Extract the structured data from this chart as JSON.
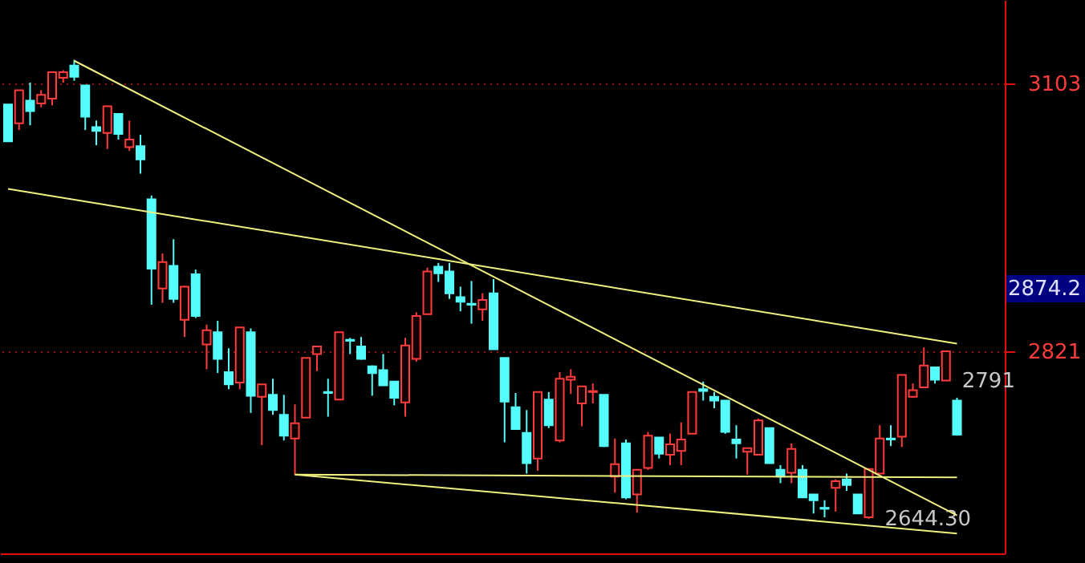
{
  "chart_data": {
    "type": "candlestick",
    "categories": [
      null,
      null,
      null,
      null,
      null,
      null,
      null,
      null,
      null,
      null,
      null,
      null,
      null,
      null,
      null,
      null,
      null,
      null,
      null,
      null,
      null,
      null,
      null,
      null,
      null,
      null,
      null,
      null,
      null,
      null,
      null,
      null,
      null,
      null,
      null,
      null,
      null,
      null,
      null,
      null,
      null,
      null,
      null,
      null,
      null,
      null,
      null,
      null,
      null,
      null,
      null,
      null,
      null,
      null,
      null,
      null,
      null,
      null,
      null,
      null,
      null,
      null,
      null,
      null,
      null,
      null,
      null,
      null,
      null,
      null,
      null,
      null,
      null,
      null,
      null,
      null,
      null,
      null,
      null,
      null,
      null,
      null,
      null,
      null,
      null,
      null,
      null
    ],
    "value_labels": [
      null,
      null,
      null,
      null,
      null,
      null,
      null,
      null,
      null,
      null,
      null,
      null,
      null,
      null,
      null,
      null,
      null,
      null,
      null,
      null,
      null,
      null,
      null,
      null,
      null,
      null,
      null,
      null,
      null,
      null,
      null,
      null,
      null,
      null,
      null,
      null,
      null,
      null,
      null,
      null,
      null,
      null,
      null,
      null,
      null,
      null,
      null,
      null,
      null,
      null,
      null,
      null,
      null,
      null,
      null,
      null,
      null,
      null,
      null,
      null,
      null,
      null,
      null,
      null,
      null,
      null,
      null,
      null,
      null,
      null,
      null,
      null,
      null,
      null,
      null,
      null,
      null,
      null,
      "2644.30",
      null,
      null,
      null,
      null,
      null,
      null,
      "2791",
      null
    ],
    "ohlc": [
      [
        3081,
        3081,
        3042,
        3042
      ],
      [
        3061,
        3096,
        3054,
        3096
      ],
      [
        3085,
        3104,
        3059,
        3074
      ],
      [
        3082,
        3096,
        3078,
        3091
      ],
      [
        3087,
        3115,
        3080,
        3115
      ],
      [
        3109,
        3117,
        3104,
        3115
      ],
      [
        3122,
        3128,
        3106,
        3110
      ],
      [
        3101,
        3101,
        3054,
        3068
      ],
      [
        3057,
        3064,
        3038,
        3053
      ],
      [
        3051,
        3079,
        3034,
        3079
      ],
      [
        3071,
        3071,
        3044,
        3050
      ],
      [
        3036,
        3064,
        3032,
        3044
      ],
      [
        3037,
        3049,
        3008,
        3023
      ],
      [
        2981,
        2985,
        2870,
        2908
      ],
      [
        2887,
        2924,
        2872,
        2915
      ],
      [
        2911,
        2939,
        2872,
        2876
      ],
      [
        2854,
        2890,
        2836,
        2889
      ],
      [
        2902,
        2907,
        2856,
        2858
      ],
      [
        2828,
        2849,
        2802,
        2843
      ],
      [
        2841,
        2853,
        2798,
        2813
      ],
      [
        2799,
        2824,
        2781,
        2786
      ],
      [
        2788,
        2846,
        2781,
        2846
      ],
      [
        2841,
        2845,
        2756,
        2774
      ],
      [
        2773,
        2786,
        2722,
        2786
      ],
      [
        2775,
        2792,
        2754,
        2759
      ],
      [
        2754,
        2775,
        2727,
        2732
      ],
      [
        2729,
        2765,
        2691,
        2745
      ],
      [
        2751,
        2814,
        2751,
        2814
      ],
      [
        2818,
        2826,
        2800,
        2826
      ],
      [
        2778,
        2792,
        2752,
        2777
      ],
      [
        2770,
        2841,
        2770,
        2841
      ],
      [
        2833,
        2835,
        2818,
        2832
      ],
      [
        2826,
        2836,
        2812,
        2813
      ],
      [
        2805,
        2806,
        2774,
        2798
      ],
      [
        2801,
        2818,
        2785,
        2785
      ],
      [
        2789,
        2789,
        2764,
        2772
      ],
      [
        2767,
        2835,
        2752,
        2827
      ],
      [
        2813,
        2862,
        2810,
        2858
      ],
      [
        2860,
        2909,
        2860,
        2905
      ],
      [
        2910,
        2914,
        2894,
        2903
      ],
      [
        2905,
        2914,
        2876,
        2882
      ],
      [
        2878,
        2889,
        2863,
        2873
      ],
      [
        2871,
        2895,
        2850,
        2870
      ],
      [
        2865,
        2882,
        2853,
        2875
      ],
      [
        2882,
        2897,
        2823,
        2823
      ],
      [
        2814,
        2814,
        2725,
        2768
      ],
      [
        2762,
        2777,
        2739,
        2739
      ],
      [
        2735,
        2759,
        2692,
        2703
      ],
      [
        2708,
        2778,
        2695,
        2778
      ],
      [
        2770,
        2778,
        2740,
        2743
      ],
      [
        2727,
        2799,
        2725,
        2792
      ],
      [
        2791,
        2802,
        2776,
        2794
      ],
      [
        2766,
        2784,
        2742,
        2784
      ],
      [
        2778,
        2787,
        2766,
        2779
      ],
      [
        2775,
        2775,
        2720,
        2721
      ],
      [
        2689,
        2729,
        2672,
        2702
      ],
      [
        2724,
        2728,
        2665,
        2667
      ],
      [
        2670,
        2696,
        2651,
        2696
      ],
      [
        2698,
        2736,
        2696,
        2732
      ],
      [
        2730,
        2730,
        2708,
        2713
      ],
      [
        2712,
        2734,
        2701,
        2723
      ],
      [
        2716,
        2746,
        2701,
        2728
      ],
      [
        2734,
        2778,
        2734,
        2778
      ],
      [
        2781,
        2789,
        2769,
        2779
      ],
      [
        2773,
        2778,
        2761,
        2769
      ],
      [
        2769,
        2769,
        2734,
        2736
      ],
      [
        2728,
        2743,
        2708,
        2724
      ],
      [
        2715,
        2719,
        2691,
        2719
      ],
      [
        2712,
        2750,
        2712,
        2748
      ],
      [
        2740,
        2740,
        2703,
        2703
      ],
      [
        2696,
        2701,
        2682,
        2689
      ],
      [
        2693,
        2724,
        2682,
        2718
      ],
      [
        2696,
        2701,
        2667,
        2667
      ],
      [
        2670,
        2670,
        2650,
        2664
      ],
      [
        2656,
        2664,
        2646,
        2655
      ],
      [
        2677,
        2686,
        2652,
        2684
      ],
      [
        2686,
        2692,
        2674,
        2680
      ],
      [
        2670,
        2670,
        2650,
        2650
      ],
      [
        2646,
        2697,
        2644.3,
        2697
      ],
      [
        2692,
        2743,
        2692,
        2729
      ],
      [
        2729,
        2743,
        2721,
        2728
      ],
      [
        2731,
        2796,
        2720,
        2796
      ],
      [
        2773,
        2787,
        2772,
        2780
      ],
      [
        2783,
        2825,
        2783,
        2806
      ],
      [
        2804,
        2804,
        2787,
        2791
      ],
      [
        2790,
        2821,
        2790,
        2821
      ],
      [
        2769,
        2772,
        2732,
        2733
      ]
    ],
    "colors": [
      "#54fcfc",
      "#ff3c3c",
      "#54fcfc",
      "#ff3c3c",
      "#ff3c3c",
      "#ff3c3c",
      "#54fcfc",
      "#54fcfc",
      "#54fcfc",
      "#ff3c3c",
      "#54fcfc",
      "#ff3c3c",
      "#54fcfc",
      "#54fcfc",
      "#ff3c3c",
      "#54fcfc",
      "#ff3c3c",
      "#54fcfc",
      "#ff3c3c",
      "#54fcfc",
      "#54fcfc",
      "#ff3c3c",
      "#54fcfc",
      "#ff3c3c",
      "#54fcfc",
      "#54fcfc",
      "#ff3c3c",
      "#ff3c3c",
      "#ff3c3c",
      "#54fcfc",
      "#ff3c3c",
      "#54fcfc",
      "#54fcfc",
      "#54fcfc",
      "#54fcfc",
      "#54fcfc",
      "#ff3c3c",
      "#ff3c3c",
      "#ff3c3c",
      "#54fcfc",
      "#54fcfc",
      "#54fcfc",
      "#54fcfc",
      "#ff3c3c",
      "#54fcfc",
      "#54fcfc",
      "#54fcfc",
      "#54fcfc",
      "#ff3c3c",
      "#54fcfc",
      "#ff3c3c",
      "#ff3c3c",
      "#ff3c3c",
      "#ff3c3c",
      "#54fcfc",
      "#ff3c3c",
      "#54fcfc",
      "#ff3c3c",
      "#ff3c3c",
      "#54fcfc",
      "#ff3c3c",
      "#ff3c3c",
      "#ff3c3c",
      "#54fcfc",
      "#54fcfc",
      "#54fcfc",
      "#54fcfc",
      "#ff3c3c",
      "#ff3c3c",
      "#54fcfc",
      "#54fcfc",
      "#ff3c3c",
      "#54fcfc",
      "#54fcfc",
      "#54fcfc",
      "#ff3c3c",
      "#54fcfc",
      "#54fcfc",
      "#ff3c3c",
      "#ff3c3c",
      "#54fcfc",
      "#ff3c3c",
      "#ff3c3c",
      "#ff3c3c",
      "#54fcfc",
      "#ff3c3c",
      "#54fcfc"
    ],
    "series": [
      {
        "type": "line",
        "color": "#f0f080",
        "values": [
          null,
          null,
          null,
          null,
          null,
          null,
          3127,
          null,
          null,
          null,
          null,
          null,
          null,
          null,
          null,
          null,
          null,
          null,
          null,
          null,
          null,
          null,
          null,
          null,
          null,
          null,
          null,
          null,
          null,
          null,
          null,
          null,
          null,
          null,
          null,
          null,
          null,
          null,
          null,
          null,
          null,
          null,
          null,
          null,
          null,
          null,
          null,
          null,
          null,
          null,
          null,
          null,
          null,
          null,
          null,
          null,
          null,
          null,
          null,
          null,
          null,
          null,
          null,
          null,
          null,
          null,
          null,
          null,
          null,
          null,
          null,
          null,
          null,
          null,
          null,
          null,
          null,
          null,
          null,
          null,
          null,
          null,
          null,
          null,
          null,
          null,
          2648
        ]
      },
      {
        "type": "line",
        "color": "#f0f080",
        "values": [
          2992,
          null,
          null,
          null,
          null,
          null,
          null,
          null,
          null,
          null,
          null,
          null,
          null,
          null,
          null,
          null,
          null,
          null,
          null,
          null,
          null,
          null,
          null,
          null,
          null,
          null,
          null,
          null,
          null,
          null,
          null,
          null,
          null,
          null,
          null,
          null,
          null,
          null,
          null,
          null,
          null,
          null,
          null,
          null,
          null,
          null,
          null,
          null,
          null,
          null,
          null,
          null,
          null,
          null,
          null,
          null,
          null,
          null,
          null,
          null,
          null,
          null,
          null,
          null,
          null,
          null,
          null,
          null,
          null,
          null,
          null,
          null,
          null,
          null,
          null,
          null,
          null,
          null,
          null,
          null,
          null,
          null,
          null,
          null,
          null,
          null,
          2829
        ]
      },
      {
        "type": "line",
        "color": "#f0f080",
        "values": [
          null,
          null,
          null,
          null,
          null,
          null,
          null,
          null,
          null,
          null,
          null,
          null,
          null,
          null,
          null,
          null,
          null,
          null,
          null,
          null,
          null,
          null,
          null,
          null,
          null,
          null,
          2691,
          null,
          null,
          null,
          null,
          null,
          null,
          null,
          null,
          null,
          null,
          null,
          null,
          null,
          null,
          null,
          null,
          null,
          null,
          null,
          null,
          null,
          null,
          null,
          null,
          null,
          null,
          null,
          null,
          null,
          null,
          null,
          null,
          null,
          null,
          null,
          null,
          null,
          null,
          null,
          null,
          null,
          null,
          null,
          null,
          null,
          null,
          null,
          null,
          null,
          null,
          null,
          null,
          null,
          null,
          null,
          null,
          null,
          null,
          null,
          2688
        ]
      },
      {
        "type": "line",
        "color": "#f0f080",
        "values": [
          null,
          null,
          null,
          null,
          null,
          null,
          null,
          null,
          null,
          null,
          null,
          null,
          null,
          null,
          null,
          null,
          null,
          null,
          null,
          null,
          null,
          null,
          null,
          null,
          null,
          null,
          2691,
          null,
          null,
          null,
          null,
          null,
          null,
          null,
          null,
          null,
          null,
          null,
          null,
          null,
          null,
          null,
          null,
          null,
          null,
          null,
          null,
          null,
          null,
          null,
          null,
          null,
          null,
          null,
          null,
          null,
          null,
          null,
          null,
          null,
          null,
          null,
          null,
          null,
          null,
          null,
          null,
          null,
          null,
          null,
          null,
          null,
          null,
          null,
          null,
          null,
          null,
          null,
          null,
          null,
          null,
          null,
          null,
          null,
          null,
          null,
          2629
        ]
      }
    ],
    "ylim": [
      2608,
      3191
    ],
    "yticks": [
      3103,
      2821
    ],
    "grid": "y",
    "tick_labels": "y",
    "annotations": [
      "2874.2"
    ]
  }
}
